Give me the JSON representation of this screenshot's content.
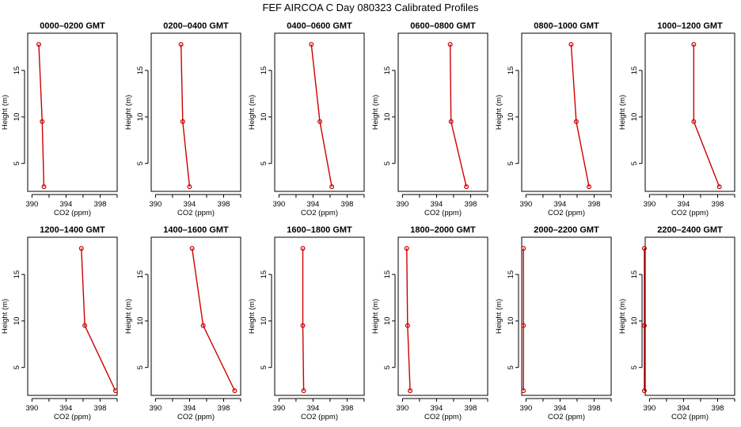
{
  "figure_title": "FEF AIRCOA C  Day 080323  Calibrated Profiles",
  "chart_data": {
    "type": "line",
    "series_color": "#cc0000",
    "xlabel": "CO2 (ppm)",
    "ylabel": "Height (m)",
    "xlim": [
      389.5,
      400
    ],
    "ylim": [
      2,
      19
    ],
    "xticks": [
      390,
      394,
      398
    ],
    "xticks_minor": [
      392,
      396,
      400
    ],
    "yticks": [
      5,
      10,
      15
    ],
    "grid": false,
    "heights": [
      17.8,
      9.5,
      2.5
    ],
    "panels": [
      {
        "title": "0000–0200 GMT",
        "x": [
          390.8,
          391.2,
          391.4
        ]
      },
      {
        "title": "0200–0400 GMT",
        "x": [
          393.0,
          393.2,
          394.0
        ]
      },
      {
        "title": "0400–0600 GMT",
        "x": [
          393.8,
          394.8,
          396.2
        ]
      },
      {
        "title": "0600–0800 GMT",
        "x": [
          395.6,
          395.7,
          397.5
        ]
      },
      {
        "title": "0800–1000 GMT",
        "x": [
          395.3,
          395.9,
          397.4
        ]
      },
      {
        "title": "1000–1200 GMT",
        "x": [
          395.2,
          395.2,
          398.2
        ]
      },
      {
        "title": "1200–1400 GMT",
        "x": [
          395.8,
          396.2,
          399.8
        ]
      },
      {
        "title": "1400–1600 GMT",
        "x": [
          394.3,
          395.6,
          399.3
        ]
      },
      {
        "title": "1600–1800 GMT",
        "x": [
          392.8,
          392.8,
          392.9
        ]
      },
      {
        "title": "1800–2000 GMT",
        "x": [
          390.5,
          390.6,
          390.9
        ]
      },
      {
        "title": "2000–2200 GMT",
        "x": [
          389.7,
          389.7,
          389.7
        ]
      },
      {
        "title": "2200–2400 GMT",
        "x": [
          389.4,
          389.4,
          389.4
        ]
      }
    ]
  }
}
